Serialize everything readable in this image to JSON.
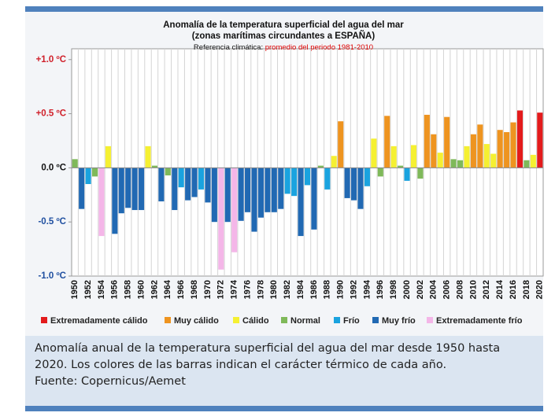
{
  "chart_data": {
    "type": "bar",
    "title": "Anomalía de la temperatura superficial del agua del mar",
    "subtitle": "(zonas marítimas circundantes a ESPAÑA)",
    "reference_label": "Referencia climática:",
    "reference_period": "promedio del periodo 1981-2010",
    "categories": [
      "1950",
      null,
      "1952",
      null,
      "1954",
      null,
      "1956",
      null,
      "1958",
      null,
      "1960",
      null,
      "1962",
      null,
      "1964",
      null,
      "1966",
      null,
      "1968",
      null,
      "1970",
      null,
      "1972",
      null,
      "1974",
      null,
      "1976",
      null,
      "1978",
      null,
      "1980",
      null,
      "1982",
      null,
      "1984",
      null,
      "1986",
      null,
      "1988",
      null,
      "1990",
      null,
      "1992",
      null,
      "1994",
      null,
      "1996",
      null,
      "1998",
      null,
      "2000",
      null,
      "2002",
      null,
      "2004",
      null,
      "2006",
      null,
      "2008",
      null,
      "2010",
      null,
      "2012",
      null,
      "2014",
      null,
      "2016",
      null,
      "2018",
      null,
      "2020"
    ],
    "values": [
      0.08,
      -0.38,
      -0.15,
      -0.08,
      -0.63,
      0.2,
      -0.61,
      -0.42,
      -0.37,
      -0.39,
      -0.39,
      0.2,
      0.02,
      -0.31,
      -0.07,
      -0.39,
      -0.18,
      -0.3,
      -0.27,
      -0.2,
      -0.32,
      -0.5,
      -0.94,
      -0.5,
      -0.78,
      -0.49,
      -0.41,
      -0.59,
      -0.46,
      -0.41,
      -0.41,
      -0.38,
      -0.24,
      -0.26,
      -0.63,
      -0.16,
      -0.57,
      0.02,
      -0.2,
      0.11,
      0.43,
      -0.28,
      -0.3,
      -0.38,
      -0.17,
      0.27,
      -0.08,
      0.48,
      0.2,
      0.02,
      -0.12,
      0.21,
      -0.1,
      0.49,
      0.31,
      0.14,
      0.47,
      0.08,
      0.07,
      0.2,
      0.31,
      0.4,
      0.22,
      0.13,
      0.35,
      0.33,
      0.42,
      0.53,
      0.07,
      0.12,
      0.51
    ],
    "bar_colors": [
      "#7fb95a",
      "#2169b3",
      "#1aa3df",
      "#7fb95a",
      "#f4b6e8",
      "#f5f032",
      "#2169b3",
      "#2169b3",
      "#2169b3",
      "#2169b3",
      "#2169b3",
      "#f5f032",
      "#7fb95a",
      "#2169b3",
      "#7fb95a",
      "#2169b3",
      "#1aa3df",
      "#2169b3",
      "#2169b3",
      "#1aa3df",
      "#2169b3",
      "#2169b3",
      "#f4b6e8",
      "#2169b3",
      "#f4b6e8",
      "#2169b3",
      "#2169b3",
      "#2169b3",
      "#2169b3",
      "#2169b3",
      "#2169b3",
      "#2169b3",
      "#1aa3df",
      "#1aa3df",
      "#2169b3",
      "#1aa3df",
      "#2169b3",
      "#7fb95a",
      "#1aa3df",
      "#f5f032",
      "#ee9420",
      "#2169b3",
      "#2169b3",
      "#2169b3",
      "#1aa3df",
      "#f5f032",
      "#7fb95a",
      "#ee9420",
      "#f5f032",
      "#7fb95a",
      "#1aa3df",
      "#f5f032",
      "#7fb95a",
      "#ee9420",
      "#ee9420",
      "#f5f032",
      "#ee9420",
      "#7fb95a",
      "#7fb95a",
      "#f5f032",
      "#ee9420",
      "#ee9420",
      "#f5f032",
      "#f5f032",
      "#ee9420",
      "#ee9420",
      "#ee9420",
      "#e31b1c",
      "#7fb95a",
      "#f5f032",
      "#e31b1c"
    ],
    "legend": [
      {
        "name": "Extremadamente cálido",
        "color": "#e31b1c"
      },
      {
        "name": "Muy cálido",
        "color": "#ee9420"
      },
      {
        "name": "Cálido",
        "color": "#f5f032"
      },
      {
        "name": "Normal",
        "color": "#7fb95a"
      },
      {
        "name": "Frío",
        "color": "#1aa3df"
      },
      {
        "name": "Muy frío",
        "color": "#2169b3"
      },
      {
        "name": "Extremadamente frío",
        "color": "#f4b6e8"
      }
    ],
    "ylim": [
      -1.0,
      1.1
    ],
    "yticks": [
      {
        "value": 1.0,
        "label": "+1.0 ºC"
      },
      {
        "value": 0.5,
        "label": "+0.5 ºC"
      },
      {
        "value": 0.0,
        "label": "0.0 ºC"
      },
      {
        "value": -0.5,
        "label": "-0.5 ºC"
      },
      {
        "value": -1.0,
        "label": "-1.0 ºC"
      }
    ],
    "grid": true
  },
  "caption": [
    "Anomalía anual de la temperatura superficial del agua del mar desde 1950 hasta",
    "2020. Los colores de las barras indican el carácter térmico de cada año.",
    "Fuente: Copernicus/Aemet"
  ]
}
